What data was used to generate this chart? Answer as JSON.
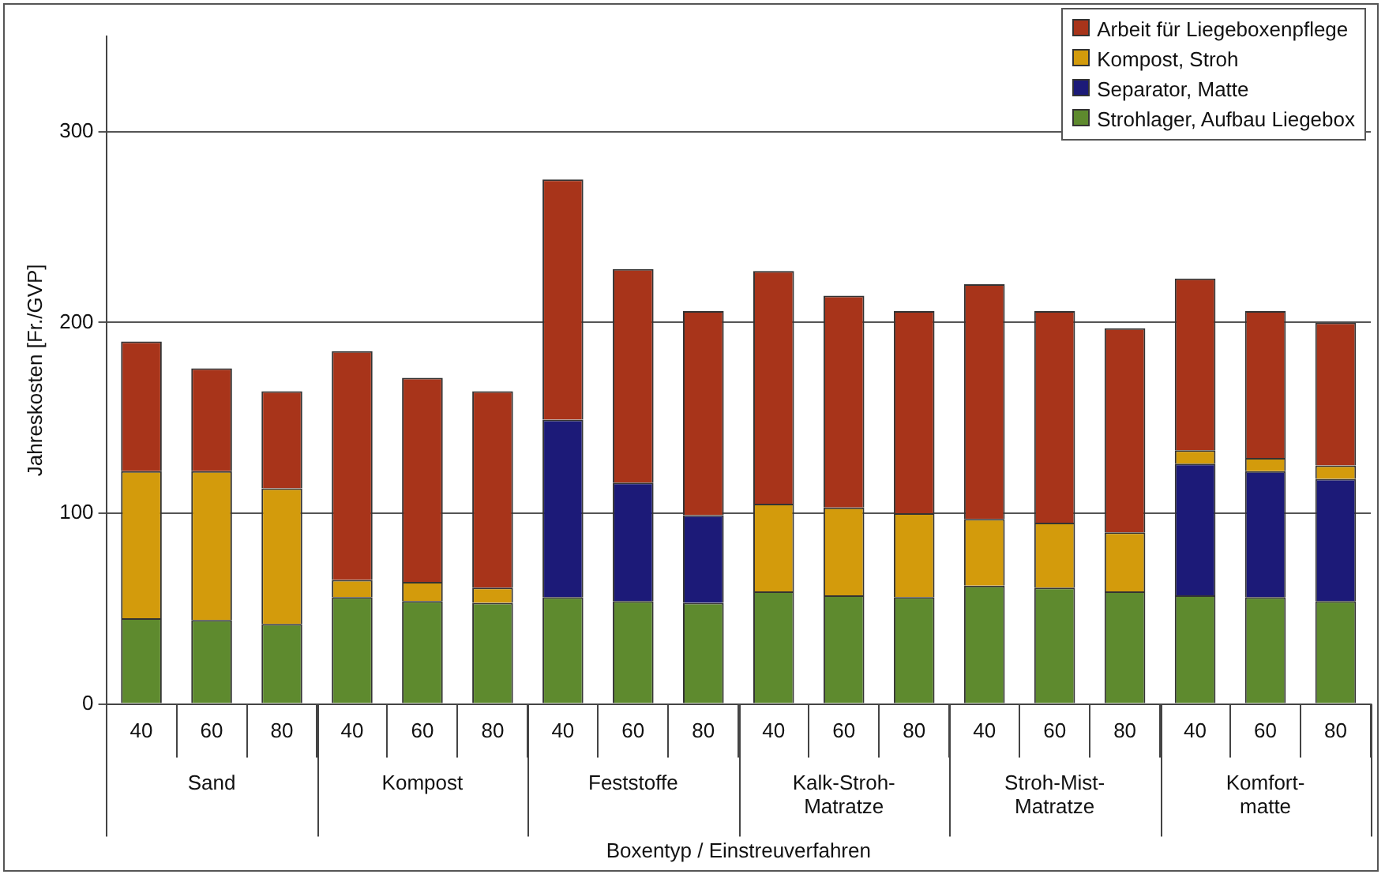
{
  "chart_data": {
    "type": "bar",
    "stacked": true,
    "xlabel": "Boxentyp / Einstreuverfahren",
    "ylabel": "Jahreskosten [Fr./GVP]",
    "categories": [
      "40",
      "60",
      "80",
      "40",
      "60",
      "80",
      "40",
      "60",
      "80",
      "40",
      "60",
      "80",
      "40",
      "60",
      "80",
      "40",
      "60",
      "80"
    ],
    "annotations": [
      "Sand",
      "Kompost",
      "Feststoffe",
      "Kalk-Stroh-Matratze",
      "Stroh-Mist-Matratze",
      "Komfort-matte"
    ],
    "series": [
      {
        "name": "Strohlager, Aufbau Liegebox",
        "color": "#5e8a2e",
        "values": [
          45,
          44,
          42,
          56,
          54,
          53,
          56,
          54,
          53,
          59,
          57,
          56,
          62,
          61,
          59,
          57,
          56,
          54
        ]
      },
      {
        "name": "Separator, Matte",
        "color": "#1c1a78",
        "values": [
          null,
          null,
          null,
          null,
          null,
          null,
          93,
          62,
          46,
          null,
          null,
          null,
          null,
          null,
          null,
          69,
          66,
          64
        ]
      },
      {
        "name": "Kompost, Stroh",
        "color": "#d39b0c",
        "values": [
          77,
          78,
          71,
          9,
          10,
          8,
          null,
          null,
          null,
          46,
          46,
          44,
          35,
          34,
          31,
          7,
          7,
          7
        ]
      },
      {
        "name": "Arbeit für Liegeboxenpflege",
        "color": "#a8341a",
        "values": [
          68,
          54,
          51,
          120,
          107,
          103,
          126,
          112,
          107,
          122,
          111,
          106,
          123,
          111,
          107,
          90,
          77,
          75
        ]
      }
    ],
    "ylim": [
      0,
      350
    ],
    "yticks": [
      0,
      100,
      200,
      300
    ],
    "grid": "y",
    "legend": "top right"
  }
}
